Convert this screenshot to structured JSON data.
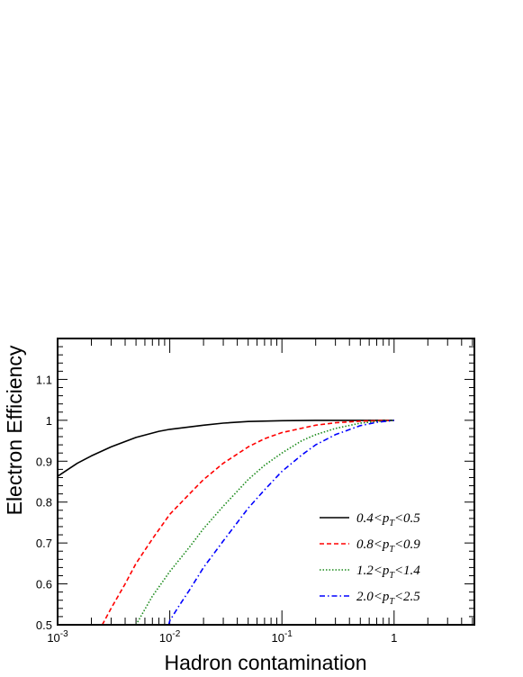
{
  "chart_data": {
    "type": "line",
    "title": "",
    "xlabel": "Hadron contamination",
    "ylabel": "Electron Efficiency",
    "xscale": "log",
    "xlim": [
      0.001,
      5.2
    ],
    "ylim": [
      0.5,
      1.2
    ],
    "x_ticks": [
      {
        "value": 0.001,
        "base": "10",
        "exp": "-3"
      },
      {
        "value": 0.01,
        "base": "10",
        "exp": "-2"
      },
      {
        "value": 0.1,
        "base": "10",
        "exp": "-1"
      },
      {
        "value": 1,
        "base": "1",
        "exp": ""
      }
    ],
    "y_ticks": [
      {
        "value": 0.5,
        "label": "0.5"
      },
      {
        "value": 0.6,
        "label": "0.6"
      },
      {
        "value": 0.7,
        "label": "0.7"
      },
      {
        "value": 0.8,
        "label": "0.8"
      },
      {
        "value": 0.9,
        "label": "0.9"
      },
      {
        "value": 1.0,
        "label": "1"
      },
      {
        "value": 1.1,
        "label": "1.1"
      }
    ],
    "grid": false,
    "legend_position": "bottom-right",
    "series": [
      {
        "name": "0.4<pT<0.5",
        "legend": {
          "lo": "0.4",
          "hi": "0.5"
        },
        "color": "#000000",
        "dash": "solid",
        "x": [
          0.001,
          0.0015,
          0.002,
          0.003,
          0.005,
          0.008,
          0.01,
          0.02,
          0.03,
          0.05,
          0.1,
          0.2,
          0.5,
          1.0
        ],
        "y": [
          0.863,
          0.895,
          0.913,
          0.935,
          0.958,
          0.973,
          0.978,
          0.988,
          0.993,
          0.997,
          0.999,
          1.0,
          1.0,
          1.0
        ]
      },
      {
        "name": "0.8<pT<0.9",
        "legend": {
          "lo": "0.8",
          "hi": "0.9"
        },
        "color": "#ff0000",
        "dash": "dashed",
        "x": [
          0.0025,
          0.003,
          0.004,
          0.005,
          0.007,
          0.01,
          0.015,
          0.02,
          0.03,
          0.05,
          0.07,
          0.1,
          0.2,
          0.3,
          0.5,
          1.0
        ],
        "y": [
          0.5,
          0.54,
          0.6,
          0.65,
          0.71,
          0.77,
          0.82,
          0.855,
          0.895,
          0.935,
          0.955,
          0.97,
          0.988,
          0.994,
          0.998,
          1.0
        ]
      },
      {
        "name": "1.2<pT<1.4",
        "legend": {
          "lo": "1.2",
          "hi": "1.4"
        },
        "color": "#1a8a1a",
        "dash": "dotted",
        "x": [
          0.005,
          0.007,
          0.01,
          0.015,
          0.02,
          0.03,
          0.05,
          0.07,
          0.1,
          0.15,
          0.2,
          0.3,
          0.5,
          0.7,
          1.0
        ],
        "y": [
          0.5,
          0.57,
          0.63,
          0.69,
          0.735,
          0.79,
          0.855,
          0.89,
          0.92,
          0.95,
          0.965,
          0.98,
          0.993,
          0.997,
          1.0
        ]
      },
      {
        "name": "2.0<pT<2.5",
        "legend": {
          "lo": "2.0",
          "hi": "2.5"
        },
        "color": "#0000ff",
        "dash": "dashdot",
        "x": [
          0.0098,
          0.01,
          0.012,
          0.015,
          0.02,
          0.03,
          0.05,
          0.07,
          0.1,
          0.15,
          0.2,
          0.3,
          0.5,
          0.7,
          1.0
        ],
        "y": [
          0.5,
          0.51,
          0.545,
          0.585,
          0.64,
          0.705,
          0.785,
          0.83,
          0.875,
          0.915,
          0.94,
          0.965,
          0.987,
          0.995,
          1.0
        ]
      }
    ]
  }
}
